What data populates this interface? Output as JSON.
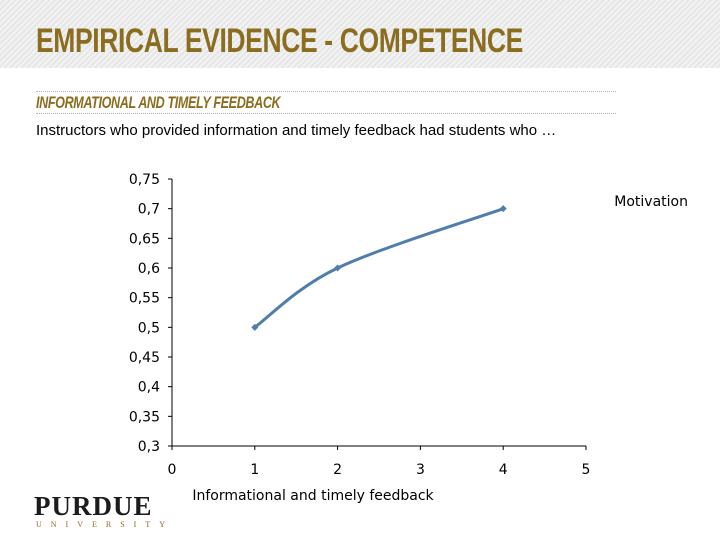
{
  "slide": {
    "title": "EMPIRICAL EVIDENCE - COMPETENCE",
    "subheading": "INFORMATIONAL AND TIMELY FEEDBACK",
    "body": "Instructors who provided information and timely feedback had students who …"
  },
  "logo": {
    "word": "PURDUE",
    "sub": "UNIVERSITY"
  },
  "colors": {
    "title": "#8b6d1f",
    "series": "#4f7dac"
  },
  "chart_data": {
    "type": "line",
    "title": "",
    "xlabel": "Informational and timely feedback",
    "ylabel": "",
    "xlim": [
      0,
      5
    ],
    "ylim": [
      0.3,
      0.75
    ],
    "x_ticks": [
      "0",
      "1",
      "2",
      "3",
      "4",
      "5"
    ],
    "y_ticks": [
      "0,3",
      "0,35",
      "0,4",
      "0,45",
      "0,5",
      "0,55",
      "0,6",
      "0,65",
      "0,7",
      "0,75"
    ],
    "series": [
      {
        "name": "Motivation",
        "x": [
          1,
          2,
          4
        ],
        "y": [
          0.5,
          0.6,
          0.7
        ]
      }
    ],
    "legend": "right",
    "grid": false
  }
}
